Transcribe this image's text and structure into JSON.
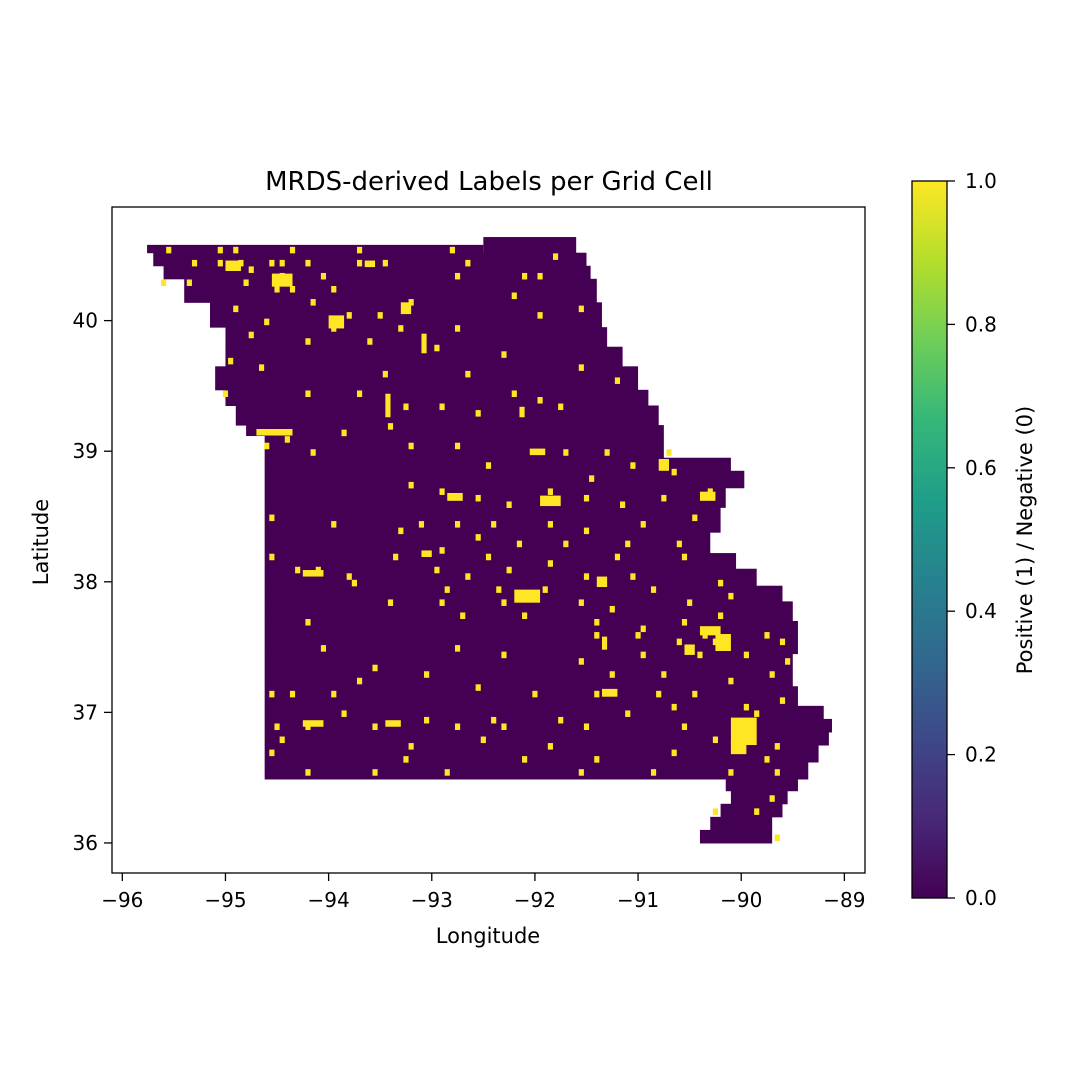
{
  "chart_data": {
    "type": "heatmap",
    "title": "MRDS-derived Labels per Grid Cell",
    "xlabel": "Longitude",
    "ylabel": "Latitude",
    "xlim": [
      -96.1,
      -88.8
    ],
    "ylim": [
      35.77,
      40.87
    ],
    "xticks": [
      -96,
      -95,
      -94,
      -93,
      -92,
      -91,
      -90,
      -89
    ],
    "xtick_labels": [
      "−96",
      "−95",
      "−94",
      "−93",
      "−92",
      "−91",
      "−90",
      "−89"
    ],
    "yticks": [
      36,
      37,
      38,
      39,
      40
    ],
    "ytick_labels": [
      "36",
      "37",
      "38",
      "39",
      "40"
    ],
    "grid": false,
    "colormap": "viridis",
    "colormap_stops": [
      "#440154",
      "#482878",
      "#3e4989",
      "#31688e",
      "#26828e",
      "#1f9e89",
      "#35b779",
      "#6ece58",
      "#b5de2b",
      "#fde725"
    ],
    "colorbar": {
      "label": "Positive (1) / Negative (0)",
      "range": [
        0,
        1
      ],
      "ticks": [
        0.0,
        0.2,
        0.4,
        0.6,
        0.8,
        1.0
      ],
      "tick_labels": [
        "0.0",
        "0.2",
        "0.4",
        "0.6",
        "0.8",
        "1.0"
      ],
      "placement": "right"
    },
    "negative_color": "#440154",
    "positive_color": "#fde725",
    "cell_size_deg": 0.05,
    "negative_regions": [
      {
        "lon": [
          -95.76,
          -92.5
        ],
        "lat": [
          40.52,
          40.58
        ]
      },
      {
        "lon": [
          -92.5,
          -91.6
        ],
        "lat": [
          40.52,
          40.64
        ]
      },
      {
        "lon": [
          -95.7,
          -91.5
        ],
        "lat": [
          40.42,
          40.52
        ]
      },
      {
        "lon": [
          -95.6,
          -91.46
        ],
        "lat": [
          40.32,
          40.42
        ]
      },
      {
        "lon": [
          -95.4,
          -91.4
        ],
        "lat": [
          40.14,
          40.32
        ]
      },
      {
        "lon": [
          -95.15,
          -91.35
        ],
        "lat": [
          39.95,
          40.14
        ]
      },
      {
        "lon": [
          -95.0,
          -91.3
        ],
        "lat": [
          39.8,
          39.95
        ]
      },
      {
        "lon": [
          -95.0,
          -91.15
        ],
        "lat": [
          39.65,
          39.8
        ]
      },
      {
        "lon": [
          -95.1,
          -91.0
        ],
        "lat": [
          39.47,
          39.65
        ]
      },
      {
        "lon": [
          -95.0,
          -90.9
        ],
        "lat": [
          39.35,
          39.47
        ]
      },
      {
        "lon": [
          -94.9,
          -90.8
        ],
        "lat": [
          39.2,
          39.35
        ]
      },
      {
        "lon": [
          -94.8,
          -90.75
        ],
        "lat": [
          39.12,
          39.2
        ]
      },
      {
        "lon": [
          -94.62,
          -90.75
        ],
        "lat": [
          38.95,
          39.12
        ]
      },
      {
        "lon": [
          -94.62,
          -90.1
        ],
        "lat": [
          38.85,
          38.95
        ]
      },
      {
        "lon": [
          -94.62,
          -89.97
        ],
        "lat": [
          38.72,
          38.85
        ]
      },
      {
        "lon": [
          -94.62,
          -90.15
        ],
        "lat": [
          38.57,
          38.72
        ]
      },
      {
        "lon": [
          -94.62,
          -90.2
        ],
        "lat": [
          38.38,
          38.57
        ]
      },
      {
        "lon": [
          -94.62,
          -90.3
        ],
        "lat": [
          38.22,
          38.38
        ]
      },
      {
        "lon": [
          -94.62,
          -90.05
        ],
        "lat": [
          38.1,
          38.22
        ]
      },
      {
        "lon": [
          -94.62,
          -89.85
        ],
        "lat": [
          37.97,
          38.1
        ]
      },
      {
        "lon": [
          -94.62,
          -89.6
        ],
        "lat": [
          37.85,
          37.97
        ]
      },
      {
        "lon": [
          -94.62,
          -89.5
        ],
        "lat": [
          37.7,
          37.85
        ]
      },
      {
        "lon": [
          -94.62,
          -89.45
        ],
        "lat": [
          37.45,
          37.7
        ]
      },
      {
        "lon": [
          -94.62,
          -89.5
        ],
        "lat": [
          37.2,
          37.45
        ]
      },
      {
        "lon": [
          -94.62,
          -89.45
        ],
        "lat": [
          37.05,
          37.2
        ]
      },
      {
        "lon": [
          -94.62,
          -89.2
        ],
        "lat": [
          36.95,
          37.05
        ]
      },
      {
        "lon": [
          -94.62,
          -89.12
        ],
        "lat": [
          36.85,
          36.95
        ]
      },
      {
        "lon": [
          -94.62,
          -89.15
        ],
        "lat": [
          36.75,
          36.85
        ]
      },
      {
        "lon": [
          -94.62,
          -89.25
        ],
        "lat": [
          36.62,
          36.75
        ]
      },
      {
        "lon": [
          -94.62,
          -89.35
        ],
        "lat": [
          36.49,
          36.62
        ]
      },
      {
        "lon": [
          -90.15,
          -89.45
        ],
        "lat": [
          36.4,
          36.49
        ]
      },
      {
        "lon": [
          -90.1,
          -89.55
        ],
        "lat": [
          36.3,
          36.4
        ]
      },
      {
        "lon": [
          -90.2,
          -89.6
        ],
        "lat": [
          36.2,
          36.3
        ]
      },
      {
        "lon": [
          -90.3,
          -89.7
        ],
        "lat": [
          36.1,
          36.2
        ]
      },
      {
        "lon": [
          -90.4,
          -89.7
        ],
        "lat": [
          36.0,
          36.1
        ]
      }
    ],
    "positive_cells": [
      [
        -95.55,
        40.54
      ],
      [
        -95.05,
        40.54
      ],
      [
        -94.9,
        40.54
      ],
      [
        -94.35,
        40.54
      ],
      [
        -93.7,
        40.54
      ],
      [
        -92.8,
        40.54
      ],
      [
        -91.8,
        40.49
      ],
      [
        -95.3,
        40.44
      ],
      [
        -95.05,
        40.44
      ],
      [
        -94.85,
        40.44
      ],
      [
        -94.55,
        40.44
      ],
      [
        -94.45,
        40.44
      ],
      [
        -94.2,
        40.44
      ],
      [
        -93.7,
        40.44
      ],
      [
        -93.45,
        40.44
      ],
      [
        -92.65,
        40.44
      ],
      [
        -94.75,
        40.39
      ],
      [
        -94.45,
        40.34
      ],
      [
        -94.05,
        40.34
      ],
      [
        -92.75,
        40.34
      ],
      [
        -92.1,
        40.34
      ],
      [
        -91.95,
        40.34
      ],
      [
        -95.6,
        40.29
      ],
      [
        -95.35,
        40.29
      ],
      [
        -94.8,
        40.29
      ],
      [
        -94.5,
        40.24
      ],
      [
        -94.35,
        40.24
      ],
      [
        -93.95,
        40.24
      ],
      [
        -92.2,
        40.19
      ],
      [
        -94.15,
        40.14
      ],
      [
        -93.2,
        40.14
      ],
      [
        -94.9,
        40.09
      ],
      [
        -93.8,
        40.04
      ],
      [
        -93.5,
        40.04
      ],
      [
        -94.6,
        39.99
      ],
      [
        -91.95,
        40.04
      ],
      [
        -91.55,
        40.09
      ],
      [
        -93.95,
        39.94
      ],
      [
        -93.3,
        39.94
      ],
      [
        -92.75,
        39.94
      ],
      [
        -94.75,
        39.89
      ],
      [
        -94.2,
        39.84
      ],
      [
        -93.6,
        39.84
      ],
      [
        -92.95,
        39.79
      ],
      [
        -92.3,
        39.74
      ],
      [
        -94.95,
        39.69
      ],
      [
        -94.65,
        39.64
      ],
      [
        -93.45,
        39.59
      ],
      [
        -92.65,
        39.59
      ],
      [
        -91.55,
        39.64
      ],
      [
        -91.2,
        39.54
      ],
      [
        -95.0,
        39.44
      ],
      [
        -94.2,
        39.44
      ],
      [
        -93.7,
        39.44
      ],
      [
        -92.2,
        39.44
      ],
      [
        -91.95,
        39.39
      ],
      [
        -91.75,
        39.34
      ],
      [
        -93.25,
        39.34
      ],
      [
        -92.9,
        39.34
      ],
      [
        -92.55,
        39.29
      ],
      [
        -93.4,
        39.19
      ],
      [
        -94.4,
        39.09
      ],
      [
        -93.85,
        39.14
      ],
      [
        -94.6,
        39.04
      ],
      [
        -92.75,
        39.04
      ],
      [
        -91.7,
        38.99
      ],
      [
        -91.3,
        38.99
      ],
      [
        -94.15,
        38.99
      ],
      [
        -93.2,
        39.04
      ],
      [
        -90.7,
        38.99
      ],
      [
        -92.45,
        38.89
      ],
      [
        -91.05,
        38.89
      ],
      [
        -90.65,
        38.84
      ],
      [
        -91.45,
        38.79
      ],
      [
        -91.85,
        38.69
      ],
      [
        -92.9,
        38.69
      ],
      [
        -93.2,
        38.74
      ],
      [
        -91.5,
        38.64
      ],
      [
        -91.15,
        38.59
      ],
      [
        -92.55,
        38.64
      ],
      [
        -92.25,
        38.59
      ],
      [
        -90.75,
        38.64
      ],
      [
        -90.3,
        38.69
      ],
      [
        -94.55,
        38.49
      ],
      [
        -93.1,
        38.44
      ],
      [
        -92.75,
        38.44
      ],
      [
        -92.4,
        38.44
      ],
      [
        -91.85,
        38.44
      ],
      [
        -91.5,
        38.39
      ],
      [
        -90.95,
        38.44
      ],
      [
        -90.45,
        38.49
      ],
      [
        -93.95,
        38.44
      ],
      [
        -93.3,
        38.39
      ],
      [
        -92.55,
        38.34
      ],
      [
        -92.15,
        38.29
      ],
      [
        -91.7,
        38.29
      ],
      [
        -91.1,
        38.29
      ],
      [
        -90.6,
        38.29
      ],
      [
        -94.55,
        38.19
      ],
      [
        -93.35,
        38.19
      ],
      [
        -92.9,
        38.24
      ],
      [
        -92.45,
        38.19
      ],
      [
        -91.85,
        38.14
      ],
      [
        -91.2,
        38.19
      ],
      [
        -90.55,
        38.19
      ],
      [
        -94.3,
        38.09
      ],
      [
        -94.1,
        38.09
      ],
      [
        -93.8,
        38.04
      ],
      [
        -92.95,
        38.09
      ],
      [
        -92.65,
        38.04
      ],
      [
        -92.25,
        38.09
      ],
      [
        -91.5,
        38.04
      ],
      [
        -91.05,
        38.04
      ],
      [
        -93.75,
        37.99
      ],
      [
        -92.85,
        37.94
      ],
      [
        -92.35,
        37.94
      ],
      [
        -91.9,
        37.94
      ],
      [
        -91.35,
        37.99
      ],
      [
        -90.85,
        37.94
      ],
      [
        -90.2,
        37.99
      ],
      [
        -93.4,
        37.84
      ],
      [
        -92.9,
        37.84
      ],
      [
        -92.3,
        37.84
      ],
      [
        -91.55,
        37.84
      ],
      [
        -91.25,
        37.79
      ],
      [
        -90.5,
        37.84
      ],
      [
        -90.1,
        37.89
      ],
      [
        -94.2,
        37.69
      ],
      [
        -92.7,
        37.74
      ],
      [
        -92.1,
        37.74
      ],
      [
        -91.4,
        37.69
      ],
      [
        -90.95,
        37.64
      ],
      [
        -90.55,
        37.69
      ],
      [
        -90.2,
        37.74
      ],
      [
        -91.4,
        37.59
      ],
      [
        -91.0,
        37.59
      ],
      [
        -90.6,
        37.54
      ],
      [
        -90.35,
        37.59
      ],
      [
        -90.25,
        37.54
      ],
      [
        -89.75,
        37.59
      ],
      [
        -89.6,
        37.54
      ],
      [
        -94.05,
        37.49
      ],
      [
        -92.75,
        37.49
      ],
      [
        -92.3,
        37.44
      ],
      [
        -91.55,
        37.39
      ],
      [
        -90.95,
        37.44
      ],
      [
        -90.4,
        37.44
      ],
      [
        -89.95,
        37.44
      ],
      [
        -89.55,
        37.39
      ],
      [
        -93.55,
        37.34
      ],
      [
        -93.7,
        37.24
      ],
      [
        -93.05,
        37.29
      ],
      [
        -92.55,
        37.19
      ],
      [
        -91.25,
        37.29
      ],
      [
        -90.75,
        37.29
      ],
      [
        -90.1,
        37.24
      ],
      [
        -89.7,
        37.29
      ],
      [
        -94.55,
        37.14
      ],
      [
        -94.35,
        37.14
      ],
      [
        -93.95,
        37.14
      ],
      [
        -92.0,
        37.14
      ],
      [
        -91.4,
        37.14
      ],
      [
        -90.8,
        37.14
      ],
      [
        -90.45,
        37.14
      ],
      [
        -89.6,
        37.09
      ],
      [
        -93.85,
        36.99
      ],
      [
        -93.05,
        36.94
      ],
      [
        -92.4,
        36.94
      ],
      [
        -91.75,
        36.94
      ],
      [
        -91.1,
        36.99
      ],
      [
        -90.65,
        37.04
      ],
      [
        -89.95,
        37.04
      ],
      [
        -89.85,
        36.99
      ],
      [
        -94.5,
        36.89
      ],
      [
        -94.2,
        36.89
      ],
      [
        -93.55,
        36.89
      ],
      [
        -92.75,
        36.89
      ],
      [
        -92.3,
        36.89
      ],
      [
        -91.5,
        36.89
      ],
      [
        -90.55,
        36.89
      ],
      [
        -89.95,
        36.89
      ],
      [
        -89.9,
        36.84
      ],
      [
        -94.45,
        36.79
      ],
      [
        -93.2,
        36.74
      ],
      [
        -92.5,
        36.79
      ],
      [
        -91.85,
        36.74
      ],
      [
        -90.25,
        36.79
      ],
      [
        -89.65,
        36.74
      ],
      [
        -94.55,
        36.69
      ],
      [
        -93.25,
        36.64
      ],
      [
        -92.1,
        36.64
      ],
      [
        -91.4,
        36.64
      ],
      [
        -90.65,
        36.69
      ],
      [
        -89.75,
        36.64
      ],
      [
        -94.2,
        36.54
      ],
      [
        -93.55,
        36.54
      ],
      [
        -92.85,
        36.54
      ],
      [
        -91.55,
        36.54
      ],
      [
        -90.85,
        36.54
      ],
      [
        -90.1,
        36.54
      ],
      [
        -89.65,
        36.54
      ],
      [
        -89.7,
        36.34
      ],
      [
        -89.85,
        36.24
      ],
      [
        -90.25,
        36.24
      ],
      [
        -89.65,
        36.04
      ]
    ],
    "positive_blocks": [
      {
        "lon": [
          -95.0,
          -94.85
        ],
        "lat": [
          40.38,
          40.46
        ]
      },
      {
        "lon": [
          -94.55,
          -94.35
        ],
        "lat": [
          40.26,
          40.36
        ]
      },
      {
        "lon": [
          -93.65,
          -93.55
        ],
        "lat": [
          40.41,
          40.46
        ]
      },
      {
        "lon": [
          -93.3,
          -93.2
        ],
        "lat": [
          40.05,
          40.14
        ]
      },
      {
        "lon": [
          -94.0,
          -93.85
        ],
        "lat": [
          39.94,
          40.04
        ]
      },
      {
        "lon": [
          -93.1,
          -93.05
        ],
        "lat": [
          39.75,
          39.9
        ]
      },
      {
        "lon": [
          -93.45,
          -93.4
        ],
        "lat": [
          39.26,
          39.44
        ]
      },
      {
        "lon": [
          -92.15,
          -92.1
        ],
        "lat": [
          39.26,
          39.34
        ]
      },
      {
        "lon": [
          -94.7,
          -94.35
        ],
        "lat": [
          39.12,
          39.17
        ]
      },
      {
        "lon": [
          -92.05,
          -91.9
        ],
        "lat": [
          38.97,
          39.02
        ]
      },
      {
        "lon": [
          -91.95,
          -91.75
        ],
        "lat": [
          38.58,
          38.66
        ]
      },
      {
        "lon": [
          -92.85,
          -92.7
        ],
        "lat": [
          38.62,
          38.68
        ]
      },
      {
        "lon": [
          -92.2,
          -91.95
        ],
        "lat": [
          37.84,
          37.94
        ]
      },
      {
        "lon": [
          -91.4,
          -91.3
        ],
        "lat": [
          37.96,
          38.04
        ]
      },
      {
        "lon": [
          -90.25,
          -90.1
        ],
        "lat": [
          37.47,
          37.6
        ]
      },
      {
        "lon": [
          -90.4,
          -90.2
        ],
        "lat": [
          37.59,
          37.66
        ]
      },
      {
        "lon": [
          -90.55,
          -90.45
        ],
        "lat": [
          37.44,
          37.52
        ]
      },
      {
        "lon": [
          -91.35,
          -91.2
        ],
        "lat": [
          37.12,
          37.18
        ]
      },
      {
        "lon": [
          -91.35,
          -91.3
        ],
        "lat": [
          37.48,
          37.58
        ]
      },
      {
        "lon": [
          -90.1,
          -89.85
        ],
        "lat": [
          36.75,
          36.96
        ]
      },
      {
        "lon": [
          -90.1,
          -89.95
        ],
        "lat": [
          36.68,
          36.78
        ]
      },
      {
        "lon": [
          -94.25,
          -94.05
        ],
        "lat": [
          36.89,
          36.94
        ]
      },
      {
        "lon": [
          -93.45,
          -93.3
        ],
        "lat": [
          36.89,
          36.94
        ]
      },
      {
        "lon": [
          -94.25,
          -94.05
        ],
        "lat": [
          38.04,
          38.09
        ]
      },
      {
        "lon": [
          -93.1,
          -93.0
        ],
        "lat": [
          38.19,
          38.24
        ]
      },
      {
        "lon": [
          -90.8,
          -90.7
        ],
        "lat": [
          38.85,
          38.94
        ]
      },
      {
        "lon": [
          -90.4,
          -90.25
        ],
        "lat": [
          38.62,
          38.69
        ]
      }
    ]
  }
}
